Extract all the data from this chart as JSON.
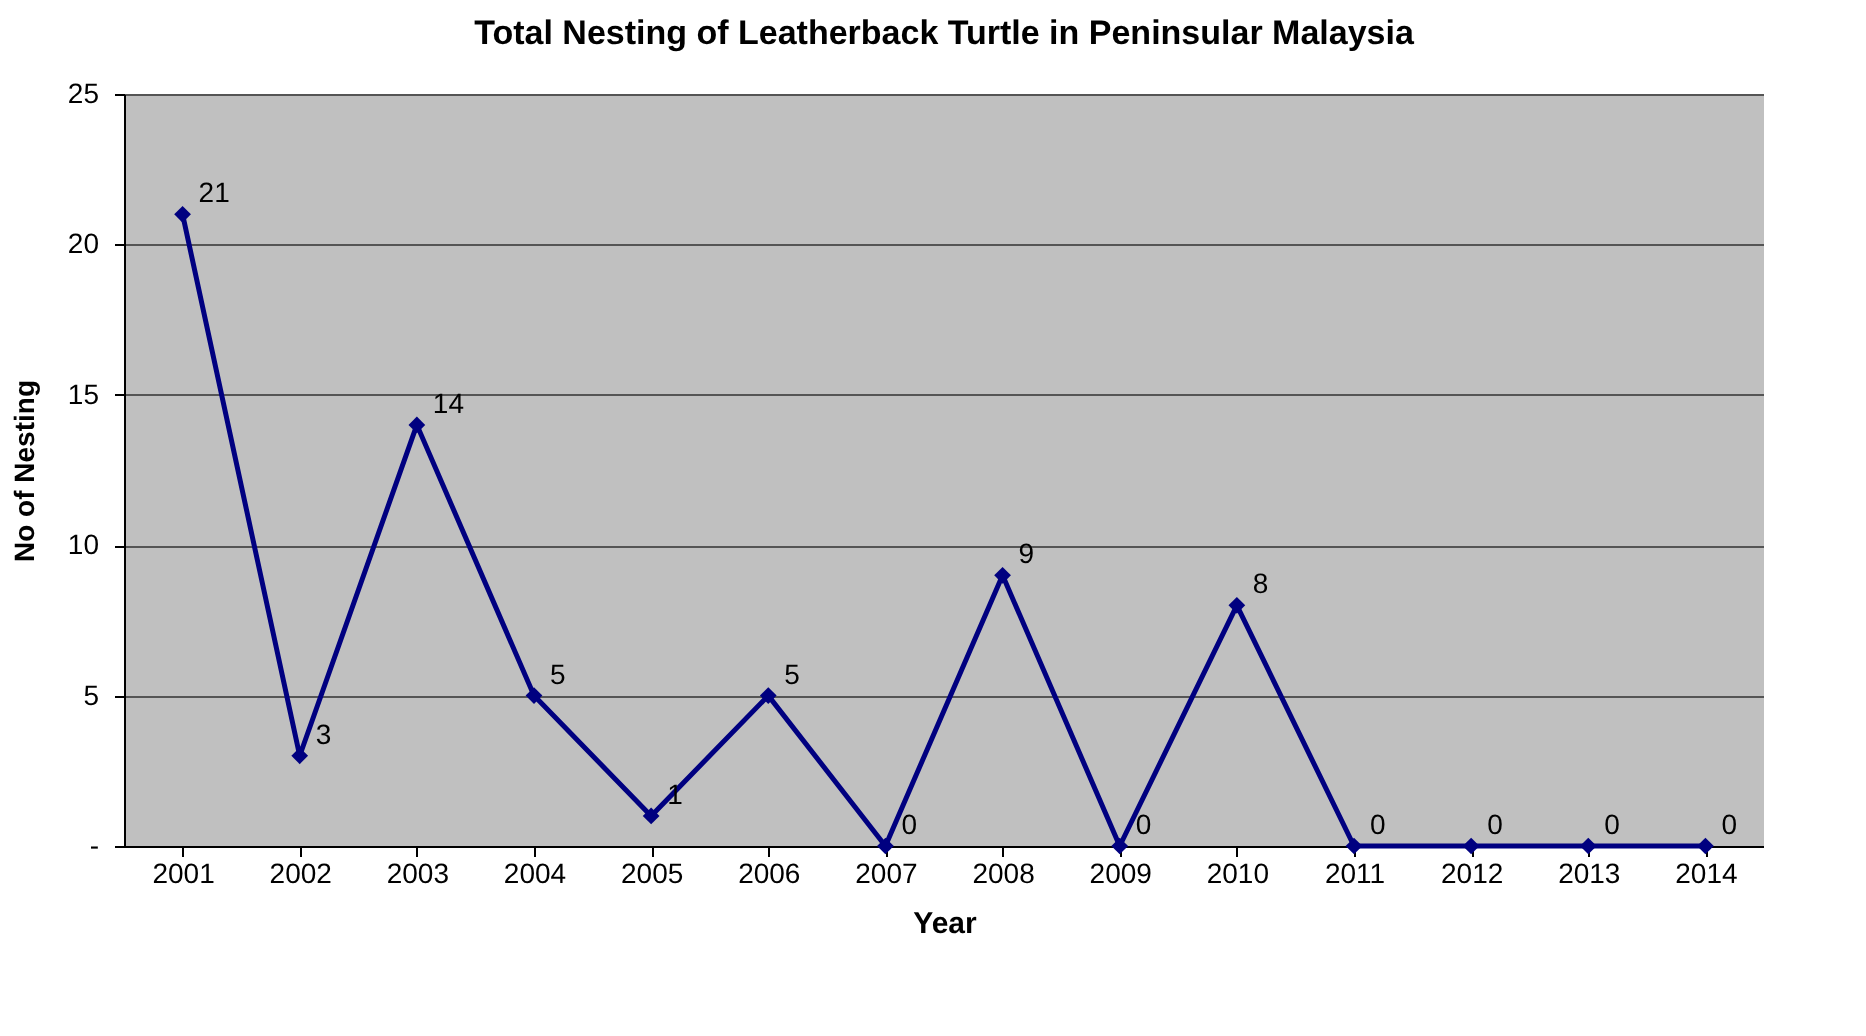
{
  "chart_data": {
    "type": "line",
    "title": "Total Nesting of  Leatherback  Turtle in Peninsular Malaysia",
    "xlabel": "Year",
    "ylabel": "No of Nesting",
    "categories": [
      "2001",
      "2002",
      "2003",
      "2004",
      "2005",
      "2006",
      "2007",
      "2008",
      "2009",
      "2010",
      "2011",
      "2012",
      "2013",
      "2014"
    ],
    "series": [
      {
        "color": "#000080",
        "values": [
          21,
          3,
          14,
          5,
          1,
          5,
          0,
          9,
          0,
          8,
          0,
          0,
          0,
          0
        ]
      }
    ],
    "ylim": [
      0,
      25
    ],
    "yticks": [
      {
        "value": 0,
        "label": "-"
      },
      5,
      10,
      15,
      20,
      25
    ],
    "grid": "y",
    "marker": "diamond",
    "line_style": "solid",
    "data_labels": true
  }
}
